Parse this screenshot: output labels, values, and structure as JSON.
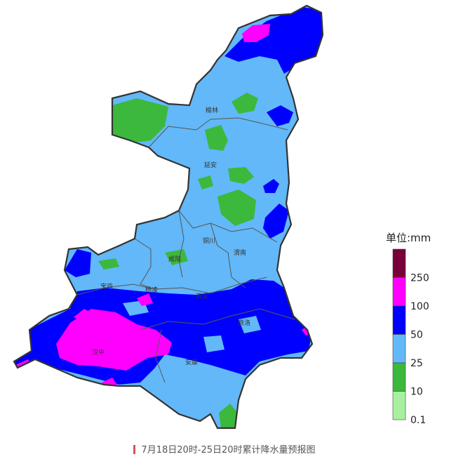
{
  "caption": "7月18日20时-25日20时累计降水量预报图",
  "legend": {
    "unit": "单位:mm",
    "ticks": [
      "250",
      "100",
      "50",
      "25",
      "10",
      "0.1"
    ],
    "colors": [
      "#7a003c",
      "#ff00ff",
      "#0000ff",
      "#62b8f8",
      "#3cb83c",
      "#a8f0a0"
    ]
  },
  "cities": [
    "榆林",
    "延安",
    "铜川",
    "渭南",
    "咸阳",
    "宝鸡",
    "杨凌",
    "西安",
    "商洛",
    "汉中",
    "安康"
  ],
  "map_colors": {
    "outline": "#333333",
    "boundary": "#555555"
  }
}
